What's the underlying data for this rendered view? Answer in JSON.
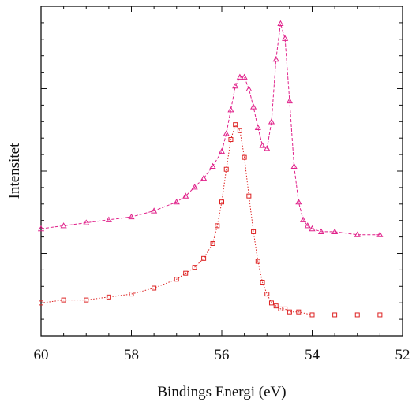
{
  "chart_data": {
    "type": "scatter",
    "xlabel": "Bindings Energi (eV)",
    "ylabel": "Intensitet",
    "xlim": [
      60,
      52
    ],
    "x_reversed": true,
    "ylim": [
      0,
      1
    ],
    "y_tick_labels_shown": false,
    "x_ticks": [
      60,
      58,
      56,
      54,
      52
    ],
    "x_tick_labels": [
      "60",
      "58",
      "56",
      "54",
      "52"
    ],
    "grid": false,
    "legend": "none",
    "series": [
      {
        "color": "#e0218a",
        "marker": "triangle",
        "line": "dashed",
        "x": [
          60.0,
          59.5,
          59.0,
          58.5,
          58.0,
          57.5,
          57.0,
          56.8,
          56.6,
          56.4,
          56.2,
          56.0,
          55.9,
          55.8,
          55.7,
          55.6,
          55.5,
          55.4,
          55.3,
          55.2,
          55.1,
          55.0,
          54.9,
          54.8,
          54.7,
          54.6,
          54.5,
          54.4,
          54.3,
          54.2,
          54.1,
          54.0,
          53.8,
          53.5,
          53.0,
          52.5
        ],
        "y": [
          0.31,
          0.32,
          0.33,
          0.34,
          0.35,
          0.37,
          0.4,
          0.42,
          0.45,
          0.48,
          0.52,
          0.57,
          0.63,
          0.71,
          0.79,
          0.82,
          0.82,
          0.78,
          0.72,
          0.65,
          0.59,
          0.58,
          0.67,
          0.88,
          1.0,
          0.95,
          0.74,
          0.52,
          0.4,
          0.34,
          0.32,
          0.31,
          0.3,
          0.3,
          0.29,
          0.29
        ]
      },
      {
        "color": "#dd2222",
        "marker": "square",
        "line": "dotted",
        "x": [
          60.0,
          59.5,
          59.0,
          58.5,
          58.0,
          57.5,
          57.0,
          56.8,
          56.6,
          56.4,
          56.2,
          56.1,
          56.0,
          55.9,
          55.8,
          55.7,
          55.6,
          55.5,
          55.4,
          55.3,
          55.2,
          55.1,
          55.0,
          54.9,
          54.8,
          54.7,
          54.6,
          54.5,
          54.3,
          54.0,
          53.5,
          53.0,
          52.5
        ],
        "y": [
          0.06,
          0.07,
          0.07,
          0.08,
          0.09,
          0.11,
          0.14,
          0.16,
          0.18,
          0.21,
          0.26,
          0.32,
          0.4,
          0.51,
          0.61,
          0.66,
          0.64,
          0.55,
          0.42,
          0.3,
          0.2,
          0.13,
          0.09,
          0.06,
          0.05,
          0.04,
          0.04,
          0.03,
          0.03,
          0.02,
          0.02,
          0.02,
          0.02
        ]
      }
    ]
  }
}
